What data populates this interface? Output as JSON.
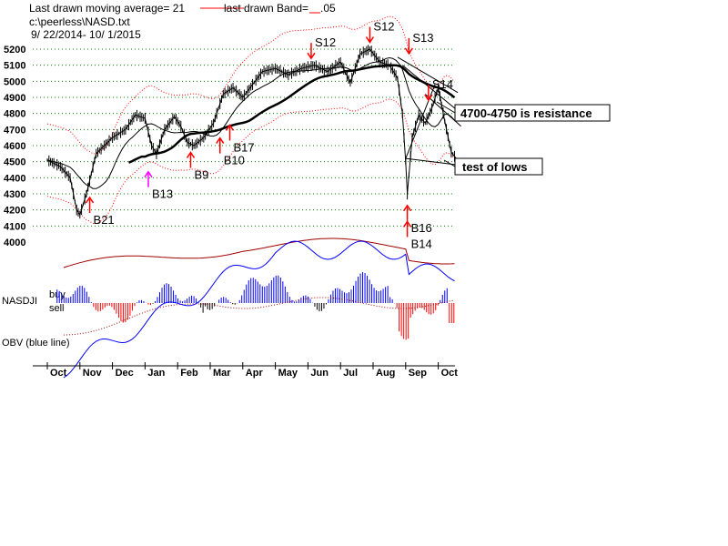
{
  "header": {
    "moving_average_text": "Last drawn moving average= 21",
    "band_label": "last drawn Band=",
    "band_value": ".05",
    "file_path": "c:\\peerless\\NASD.txt",
    "date_range": "9/ 22/2014- 10/ 1/2015"
  },
  "panel_labels": {
    "nasdji": "NASDJI",
    "buy": "buy",
    "sell": "sell",
    "obv": "OBV (blue line)"
  },
  "colors": {
    "price": "#000000",
    "band": "#ff0000",
    "ma_short": "#000000",
    "ma_long": "#000000",
    "buy_arrow": "#ff0000",
    "sell_arrow": "#ff0000",
    "magenta_arrow": "#ff00ff",
    "histogram_positive": "#0000ff",
    "histogram_negative": "#ff0000",
    "obv_line": "#0000ff",
    "indicator_band": "#a00000",
    "gridline": "#008000"
  },
  "chart_data": {
    "type": "line",
    "title": "",
    "xlabel": "",
    "ylabel": "",
    "ylim": [
      4000,
      5300
    ],
    "y_ticks": [
      4000,
      4100,
      4200,
      4300,
      4400,
      4500,
      4600,
      4700,
      4800,
      4900,
      5000,
      5100,
      5200
    ],
    "grid": true,
    "months": [
      "Oct",
      "Nov",
      "Dec",
      "Jan",
      "Feb",
      "Mar",
      "Apr",
      "May",
      "Jun",
      "Jul",
      "Aug",
      "Sep",
      "Oct"
    ],
    "series": [
      {
        "values": [
          {
            "x": 0,
            "y": 4510
          },
          {
            "x": 0.4,
            "y": 4470
          },
          {
            "x": 0.7,
            "y": 4400
          },
          {
            "x": 0.9,
            "y": 4200
          },
          {
            "x": 1.0,
            "y": 4170
          },
          {
            "x": 1.2,
            "y": 4300
          },
          {
            "x": 1.5,
            "y": 4550
          },
          {
            "x": 2.0,
            "y": 4650
          },
          {
            "x": 2.4,
            "y": 4700
          },
          {
            "x": 2.7,
            "y": 4790
          },
          {
            "x": 3.0,
            "y": 4770
          },
          {
            "x": 3.2,
            "y": 4600
          },
          {
            "x": 3.35,
            "y": 4550
          },
          {
            "x": 3.6,
            "y": 4700
          },
          {
            "x": 3.9,
            "y": 4780
          },
          {
            "x": 4.1,
            "y": 4720
          },
          {
            "x": 4.3,
            "y": 4620
          },
          {
            "x": 4.5,
            "y": 4600
          },
          {
            "x": 4.8,
            "y": 4650
          },
          {
            "x": 5.1,
            "y": 4740
          },
          {
            "x": 5.4,
            "y": 4920
          },
          {
            "x": 5.7,
            "y": 4960
          },
          {
            "x": 6.0,
            "y": 4900
          },
          {
            "x": 6.3,
            "y": 4980
          },
          {
            "x": 6.6,
            "y": 5060
          },
          {
            "x": 7.0,
            "y": 5080
          },
          {
            "x": 7.4,
            "y": 5040
          },
          {
            "x": 7.8,
            "y": 5080
          },
          {
            "x": 8.2,
            "y": 5100
          },
          {
            "x": 8.6,
            "y": 5060
          },
          {
            "x": 9.0,
            "y": 5120
          },
          {
            "x": 9.3,
            "y": 4990
          },
          {
            "x": 9.6,
            "y": 5170
          },
          {
            "x": 9.9,
            "y": 5200
          },
          {
            "x": 10.2,
            "y": 5120
          },
          {
            "x": 10.5,
            "y": 5100
          },
          {
            "x": 10.75,
            "y": 5020
          },
          {
            "x": 10.9,
            "y": 4800
          },
          {
            "x": 11.0,
            "y": 4500
          },
          {
            "x": 11.05,
            "y": 4300
          },
          {
            "x": 11.2,
            "y": 4650
          },
          {
            "x": 11.4,
            "y": 4790
          },
          {
            "x": 11.6,
            "y": 4740
          },
          {
            "x": 11.8,
            "y": 4830
          },
          {
            "x": 12.0,
            "y": 4960
          },
          {
            "x": 12.2,
            "y": 4750
          },
          {
            "x": 12.4,
            "y": 4560
          },
          {
            "x": 12.55,
            "y": 4520
          }
        ]
      }
    ],
    "signals": [
      {
        "label": "B21",
        "x": 1.3,
        "y": 4170,
        "type": "buy"
      },
      {
        "label": "B13",
        "x": 3.1,
        "y": 4330,
        "type": "buy"
      },
      {
        "label": "B9",
        "x": 4.4,
        "y": 4450,
        "type": "buy"
      },
      {
        "label": "B10",
        "x": 5.3,
        "y": 4540,
        "type": "buy"
      },
      {
        "label": "B17",
        "x": 5.6,
        "y": 4620,
        "type": "buy"
      },
      {
        "label": "S12",
        "x": 8.1,
        "y": 5250,
        "type": "sell"
      },
      {
        "label": "S12",
        "x": 9.9,
        "y": 5350,
        "type": "sell"
      },
      {
        "label": "S13",
        "x": 11.1,
        "y": 5280,
        "type": "sell"
      },
      {
        "label": "S14",
        "x": 11.7,
        "y": 4990,
        "type": "sell"
      },
      {
        "label": "B16",
        "x": 11.05,
        "y": 4120,
        "type": "buy"
      },
      {
        "label": "B14",
        "x": 11.05,
        "y": 4020,
        "type": "buy"
      }
    ],
    "annotations": [
      {
        "text": "4700-4750 is resistance"
      },
      {
        "text": "test of lows"
      }
    ]
  }
}
